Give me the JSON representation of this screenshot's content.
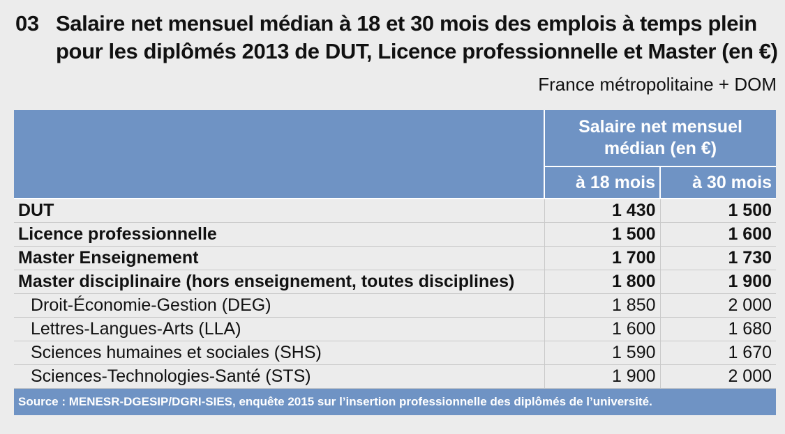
{
  "title": {
    "number": "03",
    "line1": "Salaire net mensuel médian à 18 et 30 mois des emplois à temps plein",
    "line2": "pour les diplômés 2013 de DUT, Licence professionnelle et Master (en €)"
  },
  "subtitle": "France métropolitaine + DOM",
  "table": {
    "group_header_line1": "Salaire net mensuel",
    "group_header_line2": "médian (en €)",
    "col1": "à 18 mois",
    "col2": "à 30 mois",
    "rows": [
      {
        "label": "DUT",
        "v18": "1 430",
        "v30": "1 500"
      },
      {
        "label": "Licence professionnelle",
        "v18": "1 500",
        "v30": "1 600"
      },
      {
        "label": "Master Enseignement",
        "v18": "1 700",
        "v30": "1 730"
      },
      {
        "label": "Master disciplinaire (hors enseignement, toutes disciplines)",
        "v18": "1 800",
        "v30": "1 900"
      },
      {
        "label": "Droit-Économie-Gestion (DEG)",
        "v18": "1 850",
        "v30": "2 000"
      },
      {
        "label": "Lettres-Langues-Arts (LLA)",
        "v18": "1 600",
        "v30": "1 680"
      },
      {
        "label": "Sciences humaines et sociales (SHS)",
        "v18": "1 590",
        "v30": "1 670"
      },
      {
        "label": "Sciences-Technologies-Santé (STS)",
        "v18": "1 900",
        "v30": "2 000"
      }
    ],
    "source": "Source : MENESR-DGESIP/DGRI-SIES, enquête 2015 sur l’insertion professionnelle des diplômés de l’université."
  },
  "colors": {
    "header_blue": "#6f93c4",
    "background": "#ececec"
  }
}
